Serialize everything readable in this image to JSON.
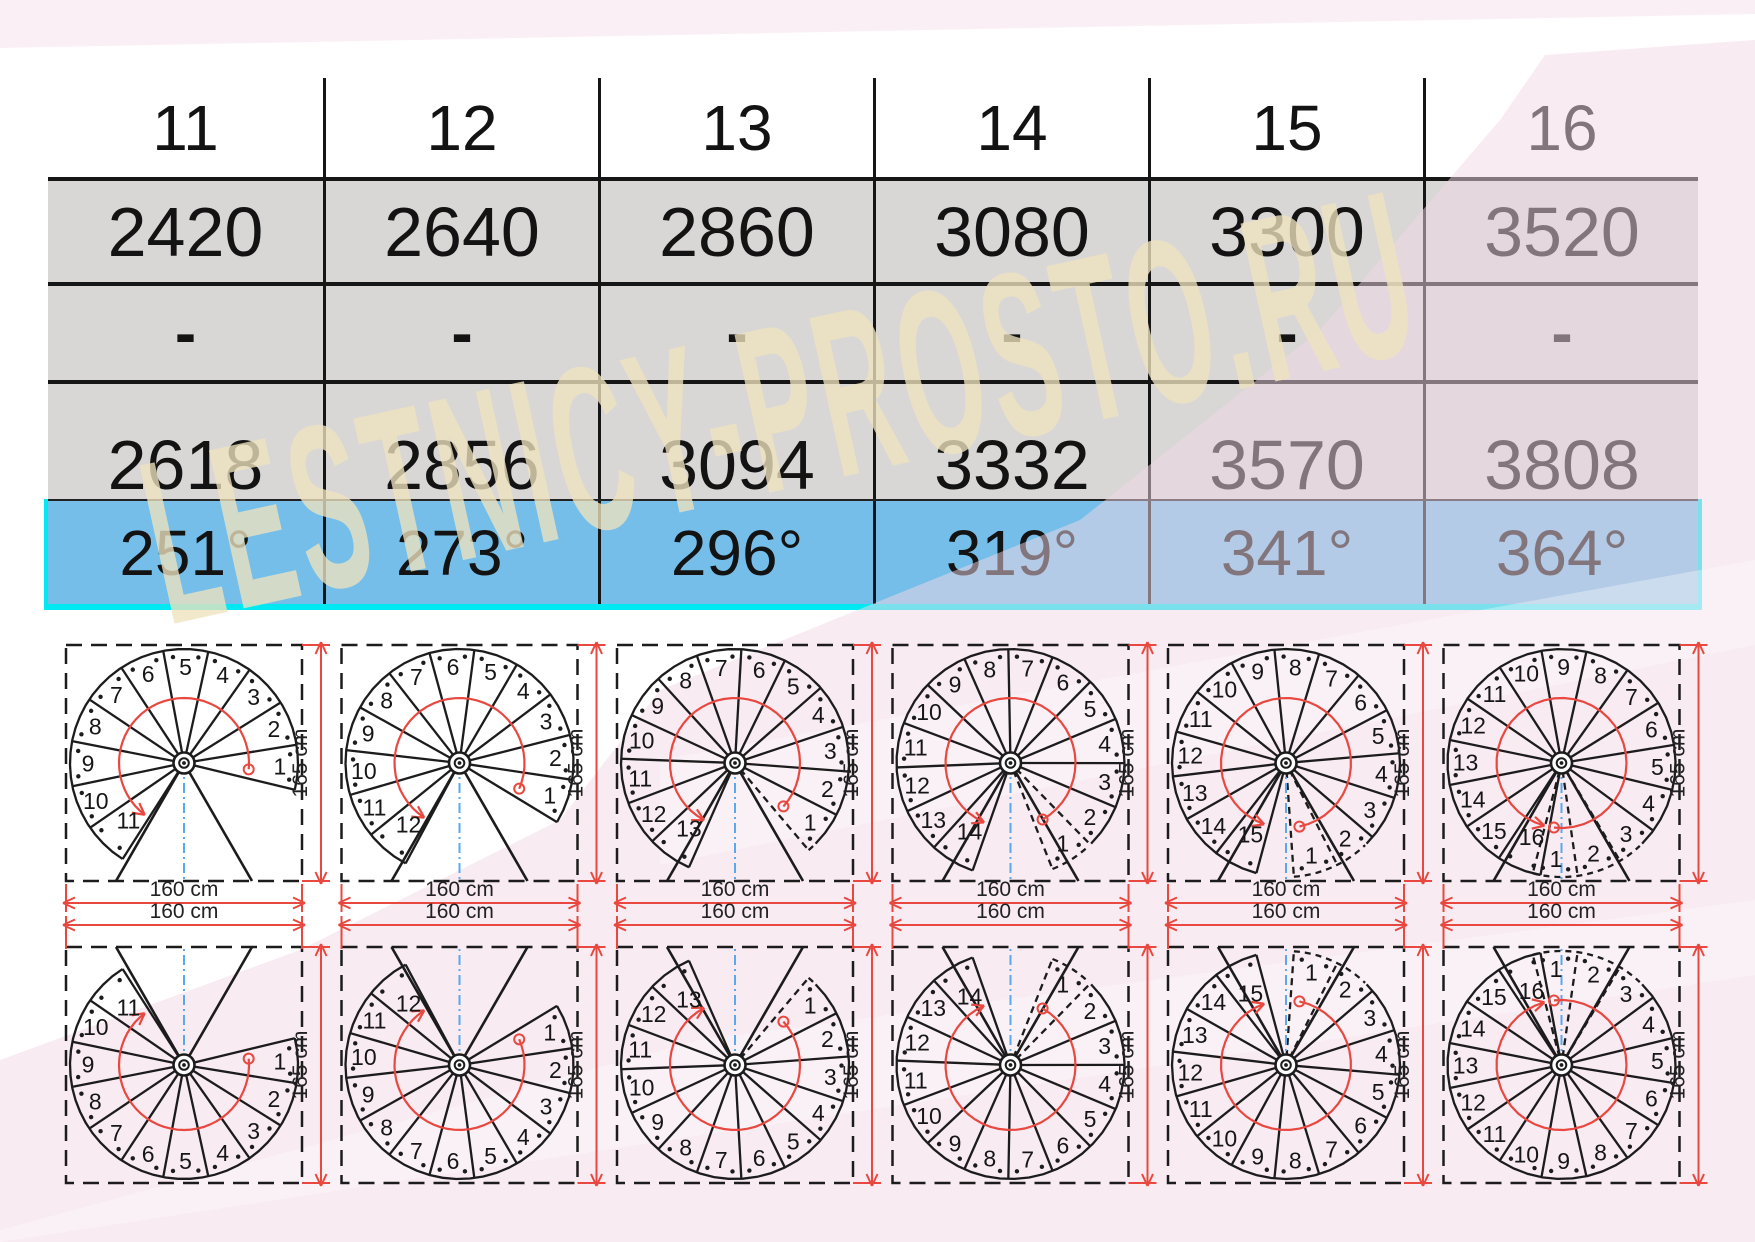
{
  "table": {
    "columns": [
      "11",
      "12",
      "13",
      "14",
      "15",
      "16"
    ],
    "rows": [
      {
        "id": "height-mm",
        "values": [
          "2420",
          "2640",
          "2860",
          "3080",
          "3300",
          "3520"
        ]
      },
      {
        "id": "dash",
        "values": [
          "-",
          "-",
          "-",
          "-",
          "-",
          "-"
        ]
      },
      {
        "id": "length-mm",
        "values": [
          "2618",
          "2856",
          "3094",
          "3332",
          "3570",
          "3808"
        ]
      },
      {
        "id": "rotation",
        "values": [
          "251°",
          "273°",
          "296°",
          "319°",
          "341°",
          "364°"
        ]
      }
    ]
  },
  "diagrams": {
    "width_label": "160 cm",
    "height_label": "165 cm",
    "columns": [
      {
        "steps": 11,
        "rotation_deg": 251
      },
      {
        "steps": 12,
        "rotation_deg": 273
      },
      {
        "steps": 13,
        "rotation_deg": 296
      },
      {
        "steps": 14,
        "rotation_deg": 319
      },
      {
        "steps": 15,
        "rotation_deg": 341
      },
      {
        "steps": 16,
        "rotation_deg": 364
      }
    ]
  },
  "watermark": {
    "text": "LESTNICY-PROSTO.RU"
  },
  "colors": {
    "cell_gray": "#d9d6d6",
    "rotation_blue": "#74bee9",
    "cyan_outline": "#00e9f2",
    "dim_red": "#e8483f",
    "axis_blue": "#5aa8ee",
    "line_black": "#1c1c1c",
    "pink_wash": "#f2d7e6",
    "watermark_cream": "#efe3bf"
  }
}
